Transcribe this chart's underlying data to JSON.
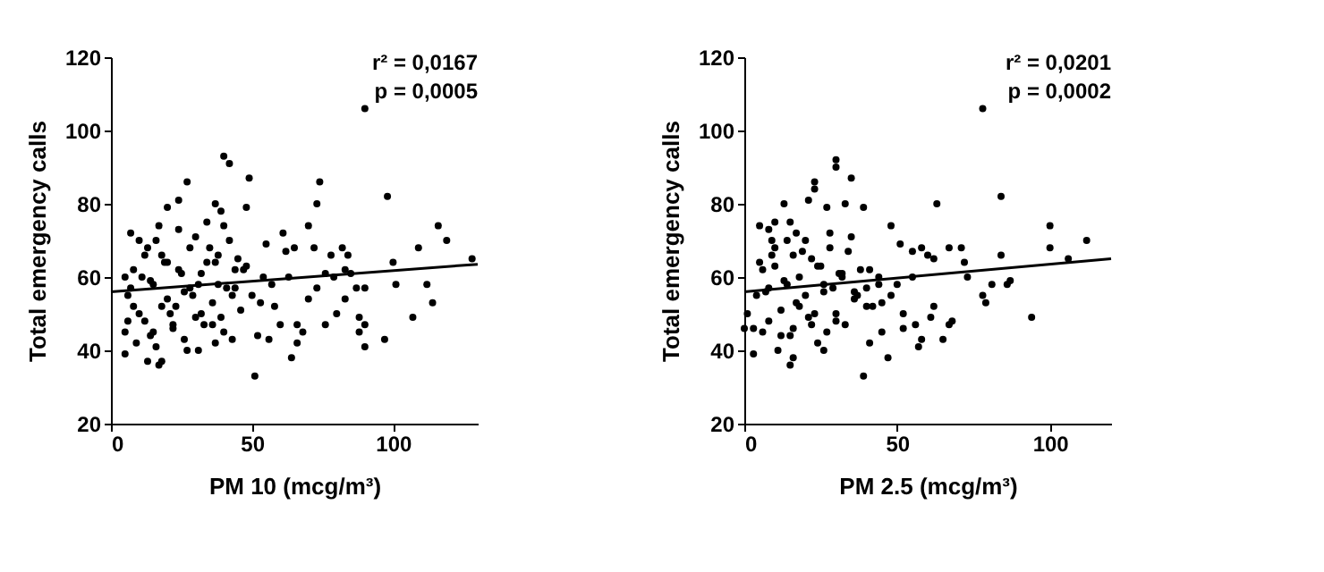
{
  "chart_data": [
    {
      "type": "scatter",
      "xlabel": "PM 10 (mcg/m³)",
      "ylabel": "Total emergency calls",
      "annotations": [
        "r² = 0,0167",
        "p = 0,0005"
      ],
      "xlim": [
        0,
        130
      ],
      "ylim": [
        20,
        120
      ],
      "xticks": [
        0,
        50,
        100
      ],
      "yticks": [
        20,
        40,
        60,
        80,
        100,
        120
      ],
      "grid": false,
      "series": [
        {
          "marker": "circle",
          "color": "#000000",
          "x": [
            90,
            40,
            42,
            27,
            49,
            74,
            73,
            98,
            37,
            39,
            48,
            24,
            20,
            116,
            119,
            109,
            128,
            100,
            101,
            112,
            114,
            107,
            97,
            90,
            90,
            88,
            88,
            90,
            84,
            82,
            78,
            70,
            72,
            76,
            80,
            83,
            76,
            66,
            64,
            51,
            52,
            56,
            60,
            66,
            68,
            5,
            13,
            17,
            18,
            31,
            37,
            43,
            61,
            55,
            62,
            65,
            70,
            73,
            79,
            83,
            85,
            87,
            5,
            6,
            8,
            10,
            12,
            14,
            15,
            16,
            18,
            20,
            22,
            24,
            26,
            28,
            30,
            32,
            34,
            36,
            38,
            40,
            42,
            44,
            46,
            48,
            8,
            10,
            12,
            14,
            16,
            18,
            20,
            22,
            24,
            26,
            28,
            30,
            32,
            34,
            36,
            38,
            40,
            44,
            50,
            54,
            58,
            7,
            11,
            15,
            19,
            23,
            27,
            31,
            35,
            39,
            43,
            47,
            53,
            57,
            63,
            9,
            13,
            17,
            21,
            25,
            29,
            33,
            37,
            41,
            45,
            5,
            6,
            7
          ],
          "values": [
            106,
            93,
            91,
            86,
            87,
            86,
            80,
            82,
            80,
            78,
            79,
            81,
            79,
            74,
            70,
            68,
            65,
            64,
            58,
            58,
            53,
            49,
            43,
            41,
            47,
            45,
            49,
            57,
            66,
            68,
            66,
            74,
            68,
            61,
            50,
            54,
            47,
            42,
            38,
            33,
            44,
            43,
            47,
            47,
            45,
            39,
            37,
            36,
            37,
            40,
            42,
            43,
            72,
            69,
            67,
            68,
            54,
            57,
            60,
            62,
            61,
            57,
            45,
            55,
            62,
            50,
            66,
            44,
            58,
            70,
            52,
            64,
            47,
            73,
            56,
            68,
            49,
            61,
            75,
            53,
            66,
            45,
            70,
            57,
            51,
            63,
            52,
            70,
            48,
            59,
            41,
            66,
            54,
            46,
            62,
            43,
            57,
            71,
            50,
            64,
            47,
            58,
            74,
            62,
            55,
            60,
            52,
            72,
            60,
            45,
            64,
            52,
            40,
            58,
            68,
            49,
            55,
            62,
            53,
            58,
            60,
            42,
            68,
            74,
            50,
            61,
            55,
            47,
            64,
            57,
            65,
            60,
            48,
            57
          ]
        },
        {
          "type": "line",
          "marker": "none",
          "line_style": "solid",
          "color": "#000000",
          "x": [
            0,
            130
          ],
          "values": [
            56,
            63.5
          ]
        }
      ]
    },
    {
      "type": "scatter",
      "xlabel": "PM 2.5 (mcg/m³)",
      "ylabel": "Total emergency calls",
      "annotations": [
        "r² = 0,0201",
        "p = 0,0002"
      ],
      "xlim": [
        0,
        120
      ],
      "ylim": [
        20,
        120
      ],
      "xticks": [
        0,
        50,
        100
      ],
      "yticks": [
        20,
        40,
        60,
        80,
        100,
        120
      ],
      "grid": false,
      "series": [
        {
          "marker": "circle",
          "color": "#000000",
          "x": [
            78,
            30,
            30,
            23,
            35,
            23,
            27,
            33,
            39,
            63,
            84,
            21,
            100,
            100,
            112,
            106,
            84,
            71,
            67,
            72,
            73,
            78,
            79,
            81,
            86,
            87,
            94,
            65,
            67,
            68,
            57,
            58,
            61,
            62,
            47,
            39,
            41,
            45,
            52,
            56,
            48,
            51,
            55,
            58,
            3,
            15,
            16,
            26,
            3,
            0,
            1,
            5,
            8,
            10,
            15,
            13,
            60,
            62,
            55,
            50,
            4,
            6,
            8,
            10,
            12,
            14,
            16,
            18,
            20,
            22,
            24,
            26,
            28,
            30,
            32,
            34,
            36,
            38,
            40,
            42,
            44,
            6,
            8,
            10,
            12,
            14,
            16,
            18,
            20,
            22,
            24,
            26,
            28,
            30,
            32,
            36,
            40,
            44,
            48,
            52,
            5,
            9,
            11,
            13,
            17,
            19,
            21,
            25,
            29,
            33,
            37,
            41,
            45,
            7,
            15,
            23,
            31,
            9,
            17,
            27,
            35
          ],
          "values": [
            106,
            92,
            90,
            86,
            87,
            84,
            79,
            80,
            79,
            80,
            82,
            81,
            74,
            68,
            70,
            65,
            66,
            68,
            68,
            64,
            60,
            55,
            53,
            58,
            58,
            59,
            49,
            43,
            47,
            48,
            41,
            43,
            49,
            52,
            38,
            33,
            42,
            45,
            46,
            47,
            74,
            69,
            67,
            68,
            39,
            36,
            38,
            40,
            46,
            46,
            50,
            74,
            73,
            75,
            75,
            80,
            66,
            65,
            60,
            58,
            55,
            62,
            48,
            68,
            44,
            58,
            66,
            52,
            70,
            47,
            63,
            56,
            72,
            50,
            60,
            67,
            54,
            62,
            57,
            52,
            60,
            45,
            57,
            63,
            51,
            70,
            46,
            60,
            55,
            65,
            42,
            58,
            68,
            48,
            61,
            56,
            52,
            58,
            55,
            50,
            64,
            70,
            40,
            59,
            53,
            67,
            49,
            63,
            57,
            47,
            55,
            62,
            53,
            56,
            44,
            50,
            61,
            66,
            72,
            45,
            71
          ]
        },
        {
          "type": "line",
          "marker": "none",
          "line_style": "solid",
          "color": "#000000",
          "x": [
            0,
            120
          ],
          "values": [
            56,
            65
          ]
        }
      ]
    }
  ]
}
